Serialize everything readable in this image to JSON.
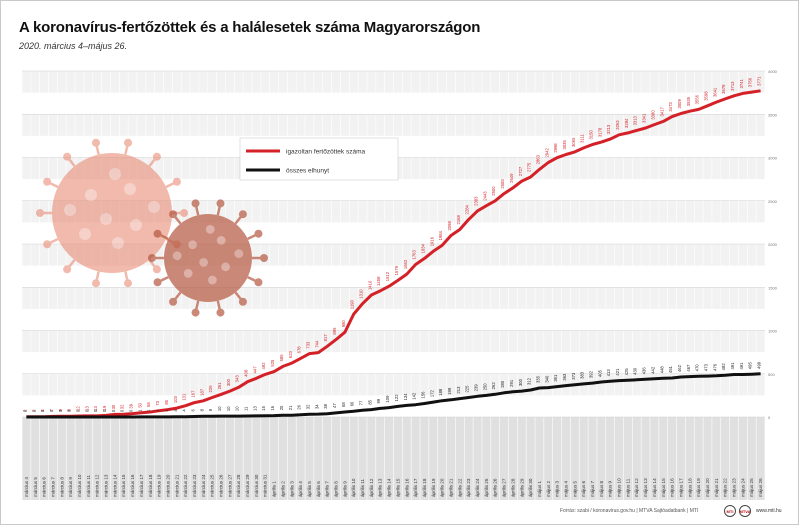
{
  "title": "A koronavírus-fertőzöttek és a halálesetek száma Magyarországon",
  "subtitle": "2020. március 4–május 26.",
  "footer": {
    "source": "Forrás: szabi / koronavirus.gov.hu | MTVA Sajtóadatbank | MTI",
    "url": "www.mti.hu",
    "logo1": "MTI",
    "logo2": "MTVA"
  },
  "colors": {
    "infected": "#d42027",
    "deaths": "#111111",
    "bandLight": "#f2f2f2",
    "bandDark": "#e4e4e4",
    "virus": "#e8826a"
  },
  "chart_data": {
    "type": "line",
    "title": "A koronavírus-fertőzöttek és a halálesetek száma Magyarországon",
    "legend_position": "top-center",
    "ylim": [
      0,
      4000
    ],
    "yticks": [
      0,
      500,
      1000,
      1500,
      2000,
      2500,
      3000,
      3500,
      4000
    ],
    "grid": true,
    "categories": [
      "március 4",
      "március 5",
      "március 6",
      "március 7",
      "március 8",
      "március 9",
      "március 10",
      "március 11",
      "március 12",
      "március 13",
      "március 14",
      "március 15",
      "március 16",
      "március 17",
      "március 18",
      "március 19",
      "március 20",
      "március 21",
      "március 22",
      "március 23",
      "március 24",
      "március 25",
      "március 26",
      "március 27",
      "március 28",
      "március 29",
      "március 30",
      "március 31",
      "április 1",
      "április 2",
      "április 3",
      "április 4",
      "április 5",
      "április 6",
      "április 7",
      "április 8",
      "április 9",
      "április 10",
      "április 11",
      "április 12",
      "április 13",
      "április 14",
      "április 15",
      "április 16",
      "április 17",
      "április 18",
      "április 19",
      "április 20",
      "április 21",
      "április 22",
      "április 23",
      "április 24",
      "április 25",
      "április 26",
      "április 27",
      "április 28",
      "április 29",
      "április 30",
      "május 1",
      "május 2",
      "május 3",
      "május 4",
      "május 5",
      "május 6",
      "május 7",
      "május 8",
      "május 9",
      "május 10",
      "május 11",
      "május 12",
      "május 13",
      "május 14",
      "május 15",
      "május 16",
      "május 17",
      "május 18",
      "május 19",
      "május 20",
      "május 21",
      "május 22",
      "május 23",
      "május 24",
      "május 25",
      "május 26"
    ],
    "series": [
      {
        "name": "igazoltan fertőzöttek száma",
        "values": [
          2,
          2,
          4,
          7,
          9,
          9,
          12,
          13,
          13,
          19,
          30,
          32,
          39,
          50,
          58,
          73,
          85,
          103,
          131,
          167,
          187,
          226,
          261,
          300,
          343,
          408,
          447,
          492,
          525,
          585,
          623,
          678,
          733,
          744,
          817,
          895,
          980,
          1190,
          1310,
          1410,
          1458,
          1512,
          1579,
          1652,
          1763,
          1834,
          1916,
          1984,
          2098,
          2168,
          2284,
          2383,
          2443,
          2500,
          2583,
          2649,
          2727,
          2775,
          2863,
          2942,
          2998,
          3035,
          3065,
          3111,
          3150,
          3178,
          3213,
          3263,
          3284,
          3313,
          3341,
          3380,
          3417,
          3473,
          3509,
          3535,
          3556,
          3598,
          3641,
          3678,
          3713,
          3741,
          3756,
          3771
        ]
      },
      {
        "name": "összes elhunyt",
        "values": [
          0,
          0,
          0,
          0,
          0,
          0,
          0,
          0,
          0,
          0,
          0,
          0,
          0,
          1,
          1,
          1,
          1,
          4,
          4,
          6,
          8,
          9,
          10,
          10,
          10,
          11,
          13,
          15,
          16,
          20,
          21,
          26,
          32,
          34,
          38,
          47,
          58,
          66,
          77,
          85,
          99,
          109,
          122,
          134,
          142,
          156,
          172,
          188,
          199,
          213,
          225,
          239,
          250,
          262,
          280,
          291,
          300,
          312,
          335,
          340,
          351,
          363,
          373,
          383,
          392,
          405,
          413,
          421,
          425,
          430,
          436,
          442,
          448,
          451,
          462,
          467,
          470,
          473,
          476,
          482,
          491,
          491,
          495,
          499
        ]
      }
    ]
  }
}
